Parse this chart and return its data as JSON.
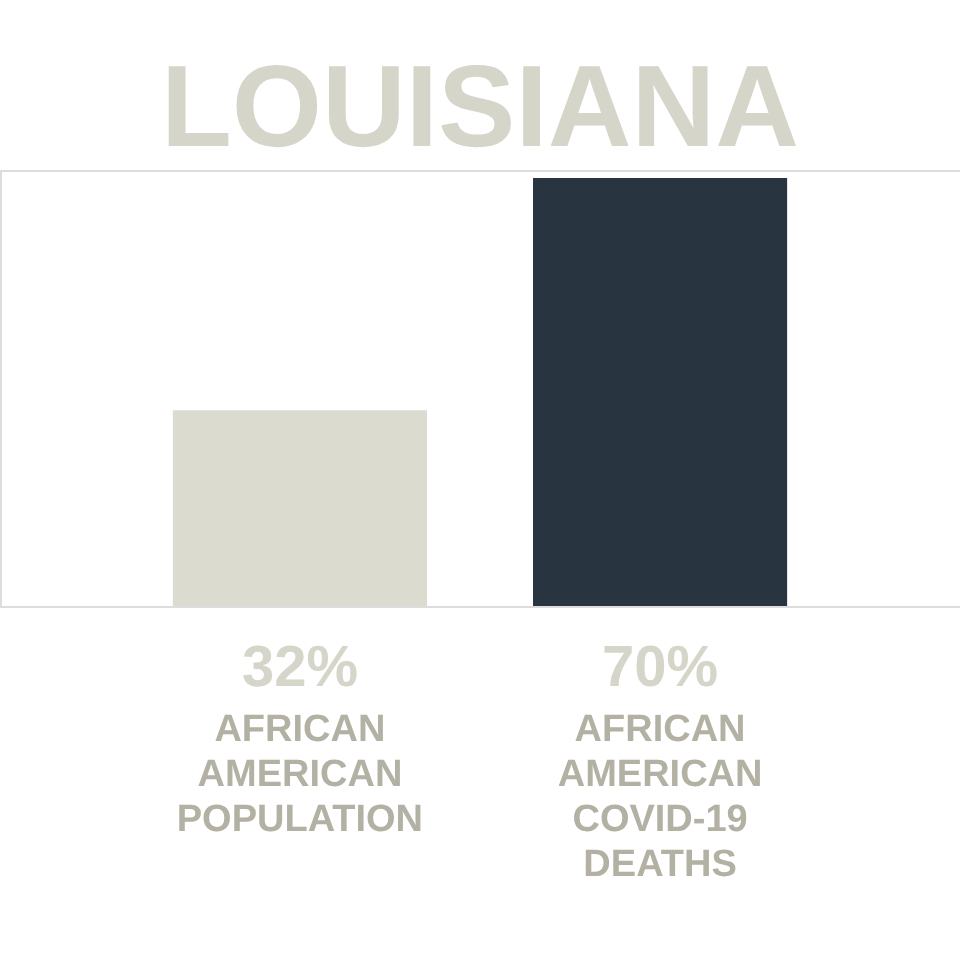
{
  "chart_data": {
    "type": "bar",
    "title": "LOUISIANA",
    "categories": [
      "AFRICAN AMERICAN POPULATION",
      "AFRICAN AMERICAN COVID-19 DEATHS"
    ],
    "values": [
      32,
      70
    ],
    "colors": [
      "#dcdbd0",
      "#283540"
    ],
    "value_labels": [
      "32%",
      "70%"
    ]
  }
}
